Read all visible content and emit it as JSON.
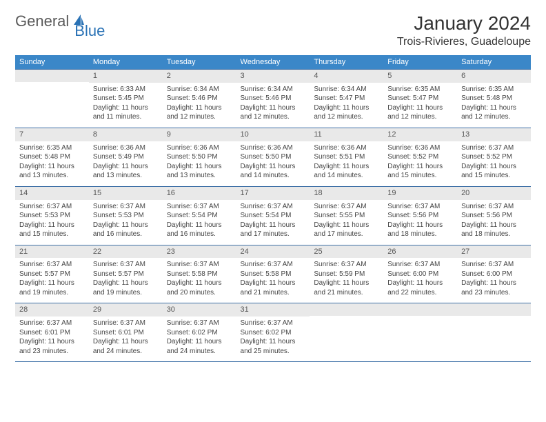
{
  "logo": {
    "part1": "General",
    "part2": "Blue"
  },
  "title": "January 2024",
  "location": "Trois-Rivieres, Guadeloupe",
  "colors": {
    "header_bg": "#3b87c8",
    "header_fg": "#ffffff",
    "daynum_bg": "#e9e9e9",
    "week_border": "#3b6ea5",
    "logo_gray": "#5a5a5a",
    "logo_blue": "#2a72b5"
  },
  "day_labels": [
    "Sunday",
    "Monday",
    "Tuesday",
    "Wednesday",
    "Thursday",
    "Friday",
    "Saturday"
  ],
  "weeks": [
    [
      null,
      {
        "n": "1",
        "sr": "Sunrise: 6:33 AM",
        "ss": "Sunset: 5:45 PM",
        "d1": "Daylight: 11 hours",
        "d2": "and 11 minutes."
      },
      {
        "n": "2",
        "sr": "Sunrise: 6:34 AM",
        "ss": "Sunset: 5:46 PM",
        "d1": "Daylight: 11 hours",
        "d2": "and 12 minutes."
      },
      {
        "n": "3",
        "sr": "Sunrise: 6:34 AM",
        "ss": "Sunset: 5:46 PM",
        "d1": "Daylight: 11 hours",
        "d2": "and 12 minutes."
      },
      {
        "n": "4",
        "sr": "Sunrise: 6:34 AM",
        "ss": "Sunset: 5:47 PM",
        "d1": "Daylight: 11 hours",
        "d2": "and 12 minutes."
      },
      {
        "n": "5",
        "sr": "Sunrise: 6:35 AM",
        "ss": "Sunset: 5:47 PM",
        "d1": "Daylight: 11 hours",
        "d2": "and 12 minutes."
      },
      {
        "n": "6",
        "sr": "Sunrise: 6:35 AM",
        "ss": "Sunset: 5:48 PM",
        "d1": "Daylight: 11 hours",
        "d2": "and 12 minutes."
      }
    ],
    [
      {
        "n": "7",
        "sr": "Sunrise: 6:35 AM",
        "ss": "Sunset: 5:48 PM",
        "d1": "Daylight: 11 hours",
        "d2": "and 13 minutes."
      },
      {
        "n": "8",
        "sr": "Sunrise: 6:36 AM",
        "ss": "Sunset: 5:49 PM",
        "d1": "Daylight: 11 hours",
        "d2": "and 13 minutes."
      },
      {
        "n": "9",
        "sr": "Sunrise: 6:36 AM",
        "ss": "Sunset: 5:50 PM",
        "d1": "Daylight: 11 hours",
        "d2": "and 13 minutes."
      },
      {
        "n": "10",
        "sr": "Sunrise: 6:36 AM",
        "ss": "Sunset: 5:50 PM",
        "d1": "Daylight: 11 hours",
        "d2": "and 14 minutes."
      },
      {
        "n": "11",
        "sr": "Sunrise: 6:36 AM",
        "ss": "Sunset: 5:51 PM",
        "d1": "Daylight: 11 hours",
        "d2": "and 14 minutes."
      },
      {
        "n": "12",
        "sr": "Sunrise: 6:36 AM",
        "ss": "Sunset: 5:52 PM",
        "d1": "Daylight: 11 hours",
        "d2": "and 15 minutes."
      },
      {
        "n": "13",
        "sr": "Sunrise: 6:37 AM",
        "ss": "Sunset: 5:52 PM",
        "d1": "Daylight: 11 hours",
        "d2": "and 15 minutes."
      }
    ],
    [
      {
        "n": "14",
        "sr": "Sunrise: 6:37 AM",
        "ss": "Sunset: 5:53 PM",
        "d1": "Daylight: 11 hours",
        "d2": "and 15 minutes."
      },
      {
        "n": "15",
        "sr": "Sunrise: 6:37 AM",
        "ss": "Sunset: 5:53 PM",
        "d1": "Daylight: 11 hours",
        "d2": "and 16 minutes."
      },
      {
        "n": "16",
        "sr": "Sunrise: 6:37 AM",
        "ss": "Sunset: 5:54 PM",
        "d1": "Daylight: 11 hours",
        "d2": "and 16 minutes."
      },
      {
        "n": "17",
        "sr": "Sunrise: 6:37 AM",
        "ss": "Sunset: 5:54 PM",
        "d1": "Daylight: 11 hours",
        "d2": "and 17 minutes."
      },
      {
        "n": "18",
        "sr": "Sunrise: 6:37 AM",
        "ss": "Sunset: 5:55 PM",
        "d1": "Daylight: 11 hours",
        "d2": "and 17 minutes."
      },
      {
        "n": "19",
        "sr": "Sunrise: 6:37 AM",
        "ss": "Sunset: 5:56 PM",
        "d1": "Daylight: 11 hours",
        "d2": "and 18 minutes."
      },
      {
        "n": "20",
        "sr": "Sunrise: 6:37 AM",
        "ss": "Sunset: 5:56 PM",
        "d1": "Daylight: 11 hours",
        "d2": "and 18 minutes."
      }
    ],
    [
      {
        "n": "21",
        "sr": "Sunrise: 6:37 AM",
        "ss": "Sunset: 5:57 PM",
        "d1": "Daylight: 11 hours",
        "d2": "and 19 minutes."
      },
      {
        "n": "22",
        "sr": "Sunrise: 6:37 AM",
        "ss": "Sunset: 5:57 PM",
        "d1": "Daylight: 11 hours",
        "d2": "and 19 minutes."
      },
      {
        "n": "23",
        "sr": "Sunrise: 6:37 AM",
        "ss": "Sunset: 5:58 PM",
        "d1": "Daylight: 11 hours",
        "d2": "and 20 minutes."
      },
      {
        "n": "24",
        "sr": "Sunrise: 6:37 AM",
        "ss": "Sunset: 5:58 PM",
        "d1": "Daylight: 11 hours",
        "d2": "and 21 minutes."
      },
      {
        "n": "25",
        "sr": "Sunrise: 6:37 AM",
        "ss": "Sunset: 5:59 PM",
        "d1": "Daylight: 11 hours",
        "d2": "and 21 minutes."
      },
      {
        "n": "26",
        "sr": "Sunrise: 6:37 AM",
        "ss": "Sunset: 6:00 PM",
        "d1": "Daylight: 11 hours",
        "d2": "and 22 minutes."
      },
      {
        "n": "27",
        "sr": "Sunrise: 6:37 AM",
        "ss": "Sunset: 6:00 PM",
        "d1": "Daylight: 11 hours",
        "d2": "and 23 minutes."
      }
    ],
    [
      {
        "n": "28",
        "sr": "Sunrise: 6:37 AM",
        "ss": "Sunset: 6:01 PM",
        "d1": "Daylight: 11 hours",
        "d2": "and 23 minutes."
      },
      {
        "n": "29",
        "sr": "Sunrise: 6:37 AM",
        "ss": "Sunset: 6:01 PM",
        "d1": "Daylight: 11 hours",
        "d2": "and 24 minutes."
      },
      {
        "n": "30",
        "sr": "Sunrise: 6:37 AM",
        "ss": "Sunset: 6:02 PM",
        "d1": "Daylight: 11 hours",
        "d2": "and 24 minutes."
      },
      {
        "n": "31",
        "sr": "Sunrise: 6:37 AM",
        "ss": "Sunset: 6:02 PM",
        "d1": "Daylight: 11 hours",
        "d2": "and 25 minutes."
      },
      null,
      null,
      null
    ]
  ]
}
